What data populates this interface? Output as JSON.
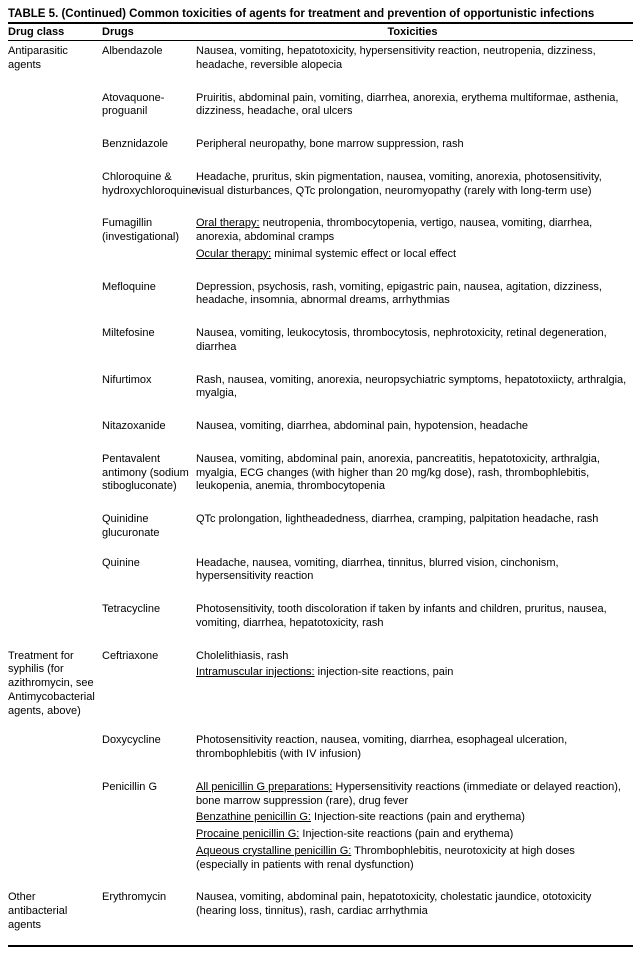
{
  "title": "TABLE 5. (Continued) Common toxicities of agents for treatment and prevention of opportunistic infections",
  "headers": {
    "class": "Drug class",
    "drug": "Drugs",
    "tox": "Toxicities"
  },
  "rows": [
    {
      "class": "Antiparasitic agents",
      "drug": "Albendazole",
      "tox": [
        {
          "label": "",
          "text": "Nausea, vomiting, hepatotoxicity, hypersensitivity reaction, neutropenia, dizziness, headache, reversible alopecia"
        }
      ]
    },
    {
      "class": "",
      "drug": "Atovaquone-proguanil",
      "tox": [
        {
          "label": "",
          "text": "Pruiritis, abdominal pain, vomiting, diarrhea, anorexia, erythema multiformae, asthenia, dizziness, headache, oral ulcers"
        }
      ]
    },
    {
      "class": "",
      "drug": "Benznidazole",
      "tox": [
        {
          "label": "",
          "text": "Peripheral neuropathy, bone marrow suppression, rash"
        }
      ]
    },
    {
      "class": "",
      "drug": "Chloroquine & hydroxychloroquine",
      "tox": [
        {
          "label": "",
          "text": "Headache, pruritus, skin pigmentation, nausea, vomiting, anorexia, photosensitivity, visual disturbances, QTc prolongation, neuromyopathy (rarely with long-term use)"
        }
      ]
    },
    {
      "class": "",
      "drug": "Fumagillin (investigational)",
      "tox": [
        {
          "label": "Oral therapy:",
          "text": " neutropenia, thrombocytopenia, vertigo, nausea, vomiting, diarrhea, anorexia, abdominal cramps"
        },
        {
          "label": "Ocular therapy:",
          "text": " minimal systemic effect or local effect"
        }
      ]
    },
    {
      "class": "",
      "drug": "Mefloquine",
      "tox": [
        {
          "label": "",
          "text": "Depression, psychosis, rash, vomiting, epigastric pain, nausea, agitation, dizziness, headache, insomnia, abnormal dreams, arrhythmias"
        }
      ]
    },
    {
      "class": "",
      "drug": "Miltefosine",
      "tox": [
        {
          "label": "",
          "text": "Nausea, vomiting, leukocytosis, thrombocytosis, nephrotoxicity, retinal degeneration, diarrhea"
        }
      ]
    },
    {
      "class": "",
      "drug": "Nifurtimox",
      "tox": [
        {
          "label": "",
          "text": "Rash, nausea, vomiting, anorexia, neuropsychiatric symptoms, hepatotoxiicty, arthralgia, myalgia,"
        }
      ]
    },
    {
      "class": "",
      "drug": "Nitazoxanide",
      "tox": [
        {
          "label": "",
          "text": "Nausea, vomiting, diarrhea, abdominal pain, hypotension, headache"
        }
      ]
    },
    {
      "class": "",
      "drug": "Pentavalent antimony (sodium stibogluconate)",
      "tox": [
        {
          "label": "",
          "text": "Nausea, vomiting, abdominal pain, anorexia, pancreatitis, hepatotoxicity, arthralgia, myalgia, ECG changes (with higher than 20 mg/kg dose), rash, thrombophlebitis, leukopenia, anemia, thrombocytopenia"
        }
      ]
    },
    {
      "class": "",
      "drug": "Quinidine glucuronate",
      "tox": [
        {
          "label": "",
          "text": "QTc prolongation, lightheadedness, diarrhea, cramping, palpitation headache, rash"
        }
      ]
    },
    {
      "class": "",
      "drug": "Quinine",
      "tox": [
        {
          "label": "",
          "text": "Headache, nausea, vomiting, diarrhea, tinnitus, blurred vision, cinchonism, hypersensitivity reaction"
        }
      ]
    },
    {
      "class": "",
      "drug": "Tetracycline",
      "tox": [
        {
          "label": "",
          "text": "Photosensitivity, tooth discoloration if taken by infants and children, pruritus, nausea, vomiting, diarrhea, hepatotoxicity, rash"
        }
      ]
    },
    {
      "class": "Treatment for syphilis (for azithromycin, see Antimycobacterial agents, above)",
      "drug": "Ceftriaxone",
      "tox": [
        {
          "label": "",
          "text": "Cholelithiasis, rash"
        },
        {
          "label": "Intramuscular injections:",
          "text": " injection-site reactions, pain"
        }
      ]
    },
    {
      "class": "",
      "drug": "Doxycycline",
      "tox": [
        {
          "label": "",
          "text": "Photosensitivity reaction, nausea, vomiting, diarrhea, esophageal ulceration, thrombophlebitis (with IV infusion)"
        }
      ]
    },
    {
      "class": "",
      "drug": "Penicillin G",
      "tox": [
        {
          "label": "All penicillin G preparations:",
          "text": " Hypersensitivity reactions (immediate or delayed reaction), bone marrow suppression (rare), drug fever"
        },
        {
          "label": "Benzathine penicillin G:",
          "text": " Injection-site reactions (pain and erythema)"
        },
        {
          "label": "Procaine penicillin G:",
          "text": " Injection-site reactions (pain and erythema)"
        },
        {
          "label": "Aqueous crystalline penicillin G:",
          "text": " Thrombophlebitis, neurotoxicity at high doses (especially in patients with renal dysfunction)"
        }
      ]
    },
    {
      "class": "Other antibacterial agents",
      "drug": "Erythromycin",
      "tox": [
        {
          "label": "",
          "text": "Nausea, vomiting, abdominal pain, hepatotoxicity, cholestatic jaundice, ototoxicity (hearing loss, tinnitus), rash, cardiac arrhythmia"
        }
      ]
    }
  ]
}
